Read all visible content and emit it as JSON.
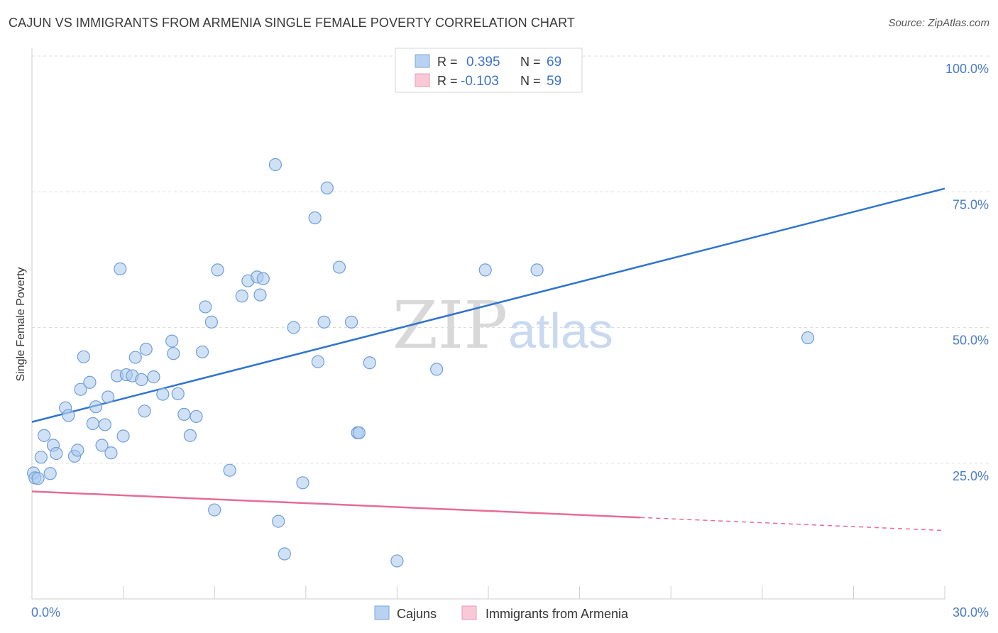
{
  "title": "CAJUN VS IMMIGRANTS FROM ARMENIA SINGLE FEMALE POVERTY CORRELATION CHART",
  "source": "Source: ZipAtlas.com",
  "watermark": {
    "part1": "ZIP",
    "part2": "atlas"
  },
  "legend": {
    "row1": {
      "r_label": "R =",
      "r_value": "0.395",
      "n_label": "N =",
      "n_value": "69"
    },
    "row2": {
      "r_label": "R =",
      "r_value": "-0.103",
      "n_label": "N =",
      "n_value": "59"
    }
  },
  "bottom_legend": {
    "series1": "Cajuns",
    "series2": "Immigrants from Armenia"
  },
  "colors": {
    "blue_fill": "#a9c8ee",
    "blue_stroke": "#6f9fd8",
    "blue_line": "#2e74cf",
    "pink_fill": "#f6b8cc",
    "pink_stroke": "#ec8fab",
    "pink_line": "#e56c97",
    "tick": "#4a7cc9",
    "grid": "#dddddd"
  },
  "chart_data": {
    "type": "scatter",
    "title": "CAJUN VS IMMIGRANTS FROM ARMENIA SINGLE FEMALE POVERTY CORRELATION CHART",
    "xlabel": "",
    "ylabel": "Single Female Poverty",
    "xlim": [
      0,
      30
    ],
    "ylim": [
      0,
      100
    ],
    "x_ticks": [
      "0.0%",
      "30.0%"
    ],
    "y_ticks": [
      {
        "value": 100,
        "label": "100.0%"
      },
      {
        "value": 75,
        "label": "75.0%"
      },
      {
        "value": 50,
        "label": "50.0%"
      },
      {
        "value": 25,
        "label": "25.0%"
      }
    ],
    "grid": true,
    "legend_position": "top-center",
    "series": [
      {
        "name": "Cajuns",
        "r": 0.395,
        "n": 69,
        "trend": {
          "x0": 0,
          "y0": 32.6,
          "x1": 30,
          "y1": 75.6,
          "dashed_from": null
        },
        "points": [
          [
            0.05,
            23.2
          ],
          [
            0.1,
            22.3
          ],
          [
            0.2,
            22.2
          ],
          [
            0.3,
            26.1
          ],
          [
            0.4,
            30.1
          ],
          [
            0.6,
            23.1
          ],
          [
            0.7,
            28.3
          ],
          [
            0.8,
            26.8
          ],
          [
            1.1,
            35.2
          ],
          [
            1.2,
            33.8
          ],
          [
            1.4,
            26.3
          ],
          [
            1.5,
            27.4
          ],
          [
            1.6,
            38.6
          ],
          [
            1.7,
            44.6
          ],
          [
            1.9,
            39.9
          ],
          [
            2.0,
            32.3
          ],
          [
            2.1,
            35.4
          ],
          [
            2.3,
            28.3
          ],
          [
            2.4,
            32.1
          ],
          [
            2.5,
            37.2
          ],
          [
            2.6,
            26.9
          ],
          [
            2.8,
            41.1
          ],
          [
            2.9,
            60.8
          ],
          [
            3.0,
            30.0
          ],
          [
            3.1,
            41.3
          ],
          [
            3.3,
            41.1
          ],
          [
            3.4,
            44.5
          ],
          [
            3.6,
            40.4
          ],
          [
            3.7,
            34.6
          ],
          [
            3.75,
            46.0
          ],
          [
            4.0,
            40.9
          ],
          [
            4.3,
            37.7
          ],
          [
            4.6,
            47.5
          ],
          [
            4.65,
            45.2
          ],
          [
            4.8,
            37.8
          ],
          [
            5.0,
            34.0
          ],
          [
            5.2,
            30.1
          ],
          [
            5.4,
            33.6
          ],
          [
            5.6,
            45.5
          ],
          [
            5.7,
            53.8
          ],
          [
            5.9,
            51.0
          ],
          [
            6.0,
            16.4
          ],
          [
            6.1,
            60.6
          ],
          [
            6.5,
            23.7
          ],
          [
            6.9,
            55.8
          ],
          [
            7.1,
            58.6
          ],
          [
            7.4,
            59.3
          ],
          [
            7.5,
            56.0
          ],
          [
            7.6,
            59.0
          ],
          [
            8.0,
            80.0
          ],
          [
            8.1,
            14.3
          ],
          [
            8.3,
            8.3
          ],
          [
            8.6,
            50.0
          ],
          [
            8.9,
            21.4
          ],
          [
            9.3,
            70.2
          ],
          [
            9.4,
            43.7
          ],
          [
            9.6,
            51.0
          ],
          [
            9.7,
            75.7
          ],
          [
            10.1,
            61.1
          ],
          [
            10.5,
            51.0
          ],
          [
            10.7,
            30.6
          ],
          [
            10.75,
            30.6
          ],
          [
            11.1,
            43.5
          ],
          [
            12.0,
            7.0
          ],
          [
            12.5,
            100.3
          ],
          [
            13.3,
            42.3
          ],
          [
            14.9,
            60.6
          ],
          [
            16.6,
            60.6
          ],
          [
            25.5,
            48.1
          ]
        ]
      },
      {
        "name": "Immigrants from Armenia",
        "r": -0.103,
        "n": 59,
        "trend": {
          "x0": 0,
          "y0": 19.8,
          "x1": 30,
          "y1": 12.6,
          "dashed_from": 20
        }
      }
    ]
  }
}
